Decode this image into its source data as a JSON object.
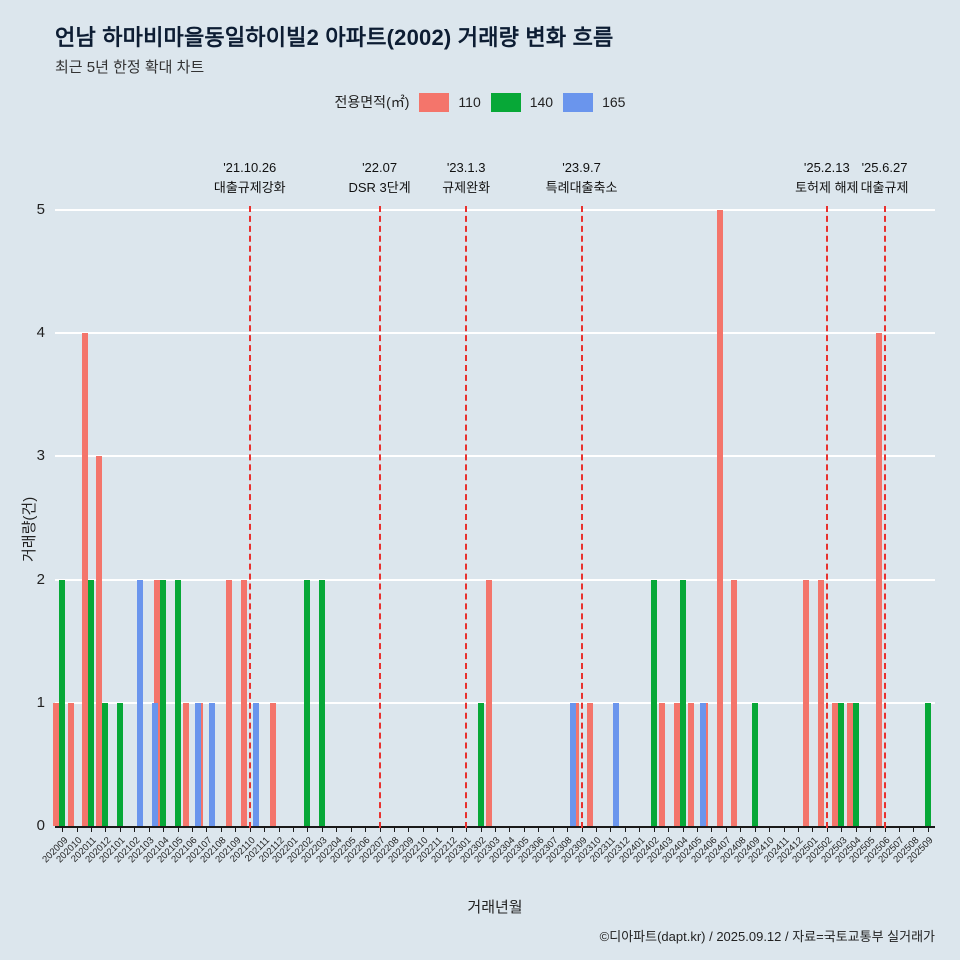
{
  "header": {
    "title": "언남 하마비마을동일하이빌2 아파트(2002) 거래량 변화 흐름",
    "subtitle": "최근 5년 한정 확대 차트"
  },
  "legend": {
    "label": "전용면적(㎡)",
    "items": [
      {
        "label": "110",
        "color": "#f4756b"
      },
      {
        "label": "140",
        "color": "#07a837"
      },
      {
        "label": "165",
        "color": "#6a95ed"
      }
    ]
  },
  "chart_data": {
    "type": "bar",
    "title": "언남 하마비마을동일하이빌2 아파트(2002) 거래량 변화 흐름",
    "xlabel": "거래년월",
    "ylabel": "거래량(건)",
    "ylim": [
      0,
      5
    ],
    "yticks": [
      0,
      1,
      2,
      3,
      4,
      5
    ],
    "grid": "horizontal-white",
    "legend_position": "top-center",
    "annotation_line_color": "#e8312e",
    "categories": [
      "202009",
      "202010",
      "202011",
      "202012",
      "202101",
      "202102",
      "202103",
      "202104",
      "202105",
      "202106",
      "202107",
      "202108",
      "202109",
      "202110",
      "202111",
      "202112",
      "202201",
      "202202",
      "202203",
      "202204",
      "202205",
      "202206",
      "202207",
      "202208",
      "202209",
      "202210",
      "202211",
      "202212",
      "202301",
      "202302",
      "202303",
      "202304",
      "202305",
      "202306",
      "202307",
      "202308",
      "202309",
      "202310",
      "202311",
      "202312",
      "202401",
      "202402",
      "202403",
      "202404",
      "202405",
      "202406",
      "202407",
      "202408",
      "202409",
      "202410",
      "202411",
      "202412",
      "202501",
      "202502",
      "202503",
      "202504",
      "202505",
      "202506",
      "202507",
      "202508",
      "202509"
    ],
    "series": [
      {
        "name": "110",
        "color": "#f4756b",
        "values": [
          1,
          1,
          4,
          3,
          0,
          0,
          0,
          2,
          0,
          1,
          1,
          0,
          2,
          2,
          0,
          1,
          0,
          0,
          0,
          0,
          0,
          0,
          0,
          0,
          0,
          0,
          0,
          0,
          0,
          0,
          2,
          0,
          0,
          0,
          0,
          0,
          1,
          1,
          0,
          0,
          0,
          0,
          1,
          1,
          1,
          1,
          5,
          2,
          0,
          0,
          0,
          0,
          2,
          2,
          1,
          1,
          0,
          4,
          0,
          0,
          0
        ]
      },
      {
        "name": "140",
        "color": "#07a837",
        "values": [
          2,
          0,
          2,
          1,
          1,
          0,
          0,
          2,
          2,
          0,
          0,
          0,
          0,
          0,
          0,
          0,
          0,
          2,
          2,
          0,
          0,
          0,
          0,
          0,
          0,
          0,
          0,
          0,
          0,
          1,
          0,
          0,
          0,
          0,
          0,
          0,
          0,
          0,
          0,
          0,
          0,
          2,
          0,
          2,
          0,
          0,
          0,
          0,
          1,
          0,
          0,
          0,
          0,
          0,
          1,
          1,
          0,
          0,
          0,
          0,
          1
        ]
      },
      {
        "name": "165",
        "color": "#6a95ed",
        "values": [
          0,
          0,
          0,
          0,
          0,
          2,
          1,
          0,
          0,
          1,
          1,
          0,
          0,
          1,
          0,
          0,
          0,
          0,
          0,
          0,
          0,
          0,
          0,
          0,
          0,
          0,
          0,
          0,
          0,
          0,
          0,
          0,
          0,
          0,
          0,
          1,
          0,
          0,
          1,
          0,
          0,
          0,
          0,
          0,
          1,
          0,
          0,
          0,
          0,
          0,
          0,
          0,
          0,
          0,
          0,
          0,
          0,
          0,
          0,
          0,
          0
        ]
      }
    ],
    "annotations": [
      {
        "month": "202110",
        "line1": "'21.10.26",
        "line2": "대출규제강화"
      },
      {
        "month": "202207",
        "line1": "'22.07",
        "line2": "DSR 3단계"
      },
      {
        "month": "202301",
        "line1": "'23.1.3",
        "line2": "규제완화"
      },
      {
        "month": "202309",
        "line1": "'23.9.7",
        "line2": "특례대출축소"
      },
      {
        "month": "202502",
        "line1": "'25.2.13",
        "line2": "토허제 해제"
      },
      {
        "month": "202506",
        "line1": "'25.6.27",
        "line2": "대출규제"
      }
    ]
  },
  "footer": {
    "credit": "©디아파트(dapt.kr) / 2025.09.12 / 자료=국토교통부 실거래가"
  }
}
